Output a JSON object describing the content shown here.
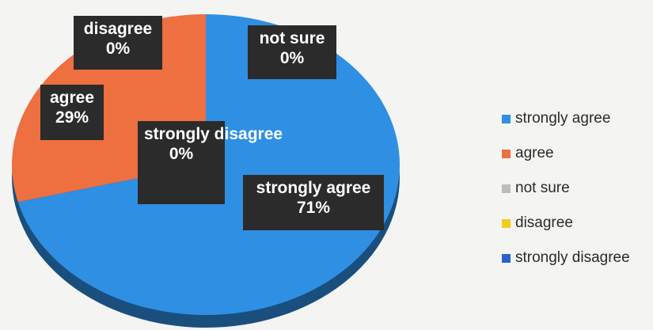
{
  "chart_data": {
    "type": "pie",
    "title": "",
    "categories": [
      "strongly agree",
      "agree",
      "not sure",
      "disagree",
      "strongly disagree"
    ],
    "values": [
      71,
      29,
      0,
      0,
      0
    ],
    "colors": [
      "#2f8fe3",
      "#ee6f3f",
      "#bdbdbd",
      "#f2cc1a",
      "#2a63c9"
    ],
    "data_labels": [
      {
        "category": "strongly agree",
        "percent": "71%"
      },
      {
        "category": "agree",
        "percent": "29%"
      },
      {
        "category": "not sure",
        "percent": "0%"
      },
      {
        "category": "disagree",
        "percent": "0%"
      },
      {
        "category": "strongly disagree",
        "percent": "0%"
      }
    ],
    "legend_position": "right",
    "style": "3d-pie"
  }
}
